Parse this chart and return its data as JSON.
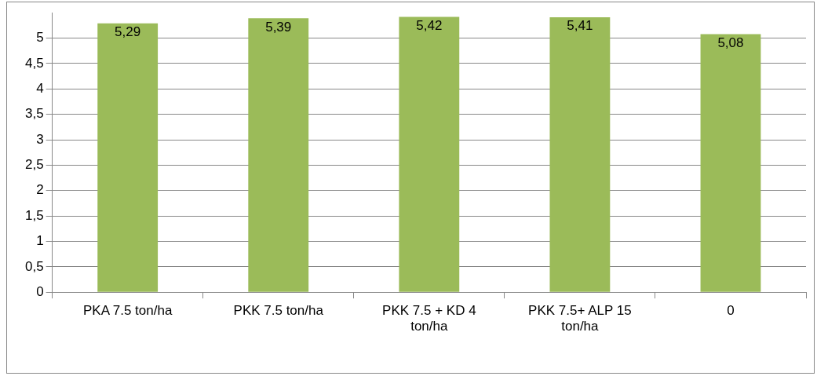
{
  "chart_data": {
    "type": "bar",
    "categories": [
      "PKA 7.5 ton/ha",
      "PKK 7.5 ton/ha",
      "PKK 7.5 + KD 4 ton/ha",
      "PKK 7.5+ ALP 15 ton/ha",
      "0"
    ],
    "values": [
      5.29,
      5.39,
      5.42,
      5.41,
      5.08
    ],
    "value_labels": [
      "5,29",
      "5,39",
      "5,42",
      "5,41",
      "5,08"
    ],
    "color": "#9bbb59",
    "ylim": [
      0,
      5.5
    ],
    "yticks": [
      0,
      {
        "value": 0.5,
        "label": "0,5"
      },
      1,
      {
        "value": 1.5,
        "label": "1,5"
      },
      2,
      {
        "value": 2.5,
        "label": "2,5"
      },
      3,
      {
        "value": 3.5,
        "label": "3,5"
      },
      4,
      {
        "value": 4.5,
        "label": "4,5"
      },
      5
    ],
    "grid": "y",
    "legend": false
  }
}
